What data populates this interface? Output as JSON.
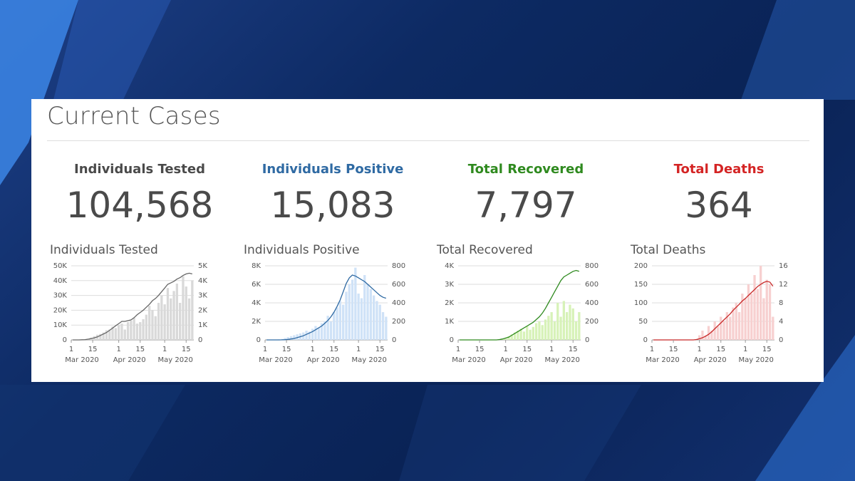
{
  "panel": {
    "title": "Current Cases"
  },
  "stats": [
    {
      "label": "Individuals Tested",
      "value": "104,568",
      "color": "#4a4a4a"
    },
    {
      "label": "Individuals Positive",
      "value": "15,083",
      "color": "#2f6aa3"
    },
    {
      "label": "Total Recovered",
      "value": "7,797",
      "color": "#2f8a1f"
    },
    {
      "label": "Total Deaths",
      "value": "364",
      "color": "#d42424"
    }
  ],
  "chart_data": [
    {
      "type": "bar",
      "title": "Individuals Tested",
      "bar_color": "#d9d9d9",
      "line_color": "#666666",
      "left_ticks": [
        "50K",
        "40K",
        "30K",
        "20K",
        "10K",
        "0"
      ],
      "right_ticks": [
        "5K",
        "4K",
        "3K",
        "2K",
        "1K",
        "0"
      ],
      "x_ticks": [
        "1",
        "15",
        "1",
        "15",
        "1",
        "15"
      ],
      "month_labels": [
        "Mar 2020",
        "Apr 2020",
        "May 2020"
      ],
      "ylim_left": [
        0,
        50000
      ],
      "ylim_right": [
        0,
        5000
      ],
      "x": [
        "Mar 1",
        "Mar 3",
        "Mar 5",
        "Mar 7",
        "Mar 9",
        "Mar 11",
        "Mar 13",
        "Mar 15",
        "Mar 17",
        "Mar 19",
        "Mar 21",
        "Mar 23",
        "Mar 25",
        "Mar 27",
        "Mar 29",
        "Mar 31",
        "Apr 2",
        "Apr 4",
        "Apr 6",
        "Apr 8",
        "Apr 10",
        "Apr 12",
        "Apr 14",
        "Apr 16",
        "Apr 18",
        "Apr 20",
        "Apr 22",
        "Apr 24",
        "Apr 26",
        "Apr 28",
        "Apr 30",
        "May 2",
        "May 4",
        "May 6",
        "May 8",
        "May 10",
        "May 12",
        "May 14",
        "May 16",
        "May 18"
      ],
      "series": [
        {
          "axis": "right",
          "values": [
            0,
            0,
            10,
            20,
            50,
            80,
            150,
            250,
            350,
            400,
            500,
            650,
            700,
            900,
            800,
            1000,
            1100,
            700,
            1200,
            1300,
            1500,
            1100,
            1200,
            1400,
            1700,
            2300,
            2000,
            1600,
            2500,
            3000,
            2400,
            3500,
            2800,
            3300,
            3800,
            2500,
            4300,
            3600,
            2800,
            4000
          ]
        },
        {
          "axis": "left",
          "values": [
            0,
            0,
            0,
            100,
            200,
            500,
            900,
            1400,
            2000,
            3000,
            4000,
            5000,
            6500,
            8000,
            9500,
            11000,
            12500,
            12500,
            13000,
            13500,
            15000,
            17000,
            18500,
            20000,
            22000,
            24000,
            26500,
            28000,
            30000,
            32500,
            35000,
            37500,
            38500,
            39500,
            41000,
            42000,
            43500,
            44500,
            45000,
            44500
          ]
        }
      ]
    },
    {
      "type": "bar",
      "title": "Individuals Positive",
      "bar_color": "#cfe2f7",
      "line_color": "#2f6aa3",
      "left_ticks": [
        "8K",
        "6K",
        "4K",
        "2K",
        "0"
      ],
      "right_ticks": [
        "800",
        "600",
        "400",
        "200",
        "0"
      ],
      "x_ticks": [
        "1",
        "15",
        "1",
        "15",
        "1",
        "15"
      ],
      "month_labels": [
        "Mar 2020",
        "Apr 2020",
        "May 2020"
      ],
      "ylim_left": [
        0,
        8000
      ],
      "ylim_right": [
        0,
        800
      ],
      "x": [
        "Mar 1",
        "Mar 3",
        "Mar 5",
        "Mar 7",
        "Mar 9",
        "Mar 11",
        "Mar 13",
        "Mar 15",
        "Mar 17",
        "Mar 19",
        "Mar 21",
        "Mar 23",
        "Mar 25",
        "Mar 27",
        "Mar 29",
        "Mar 31",
        "Apr 2",
        "Apr 4",
        "Apr 6",
        "Apr 8",
        "Apr 10",
        "Apr 12",
        "Apr 14",
        "Apr 16",
        "Apr 18",
        "Apr 20",
        "Apr 22",
        "Apr 24",
        "Apr 26",
        "Apr 28",
        "Apr 30",
        "May 2",
        "May 4",
        "May 6",
        "May 8",
        "May 10",
        "May 12",
        "May 14",
        "May 16",
        "May 18"
      ],
      "series": [
        {
          "axis": "right",
          "values": [
            0,
            0,
            0,
            0,
            5,
            10,
            20,
            30,
            40,
            50,
            60,
            70,
            80,
            100,
            90,
            120,
            150,
            130,
            180,
            200,
            260,
            200,
            300,
            350,
            420,
            380,
            520,
            600,
            650,
            780,
            500,
            450,
            700,
            600,
            550,
            480,
            420,
            380,
            300,
            250
          ]
        },
        {
          "axis": "left",
          "values": [
            0,
            0,
            0,
            0,
            0,
            10,
            20,
            50,
            100,
            150,
            250,
            350,
            450,
            600,
            750,
            900,
            1100,
            1300,
            1500,
            1800,
            2100,
            2500,
            3000,
            3600,
            4300,
            5200,
            6100,
            6700,
            7000,
            6900,
            6700,
            6500,
            6300,
            6000,
            5700,
            5400,
            5100,
            4800,
            4600,
            4500
          ]
        }
      ]
    },
    {
      "type": "bar",
      "title": "Total Recovered",
      "bar_color": "#d7f2b8",
      "line_color": "#2f8a1f",
      "left_ticks": [
        "4K",
        "3K",
        "2K",
        "1K",
        "0"
      ],
      "right_ticks": [
        "800",
        "600",
        "400",
        "200",
        "0"
      ],
      "x_ticks": [
        "1",
        "15",
        "1",
        "15",
        "1",
        "15"
      ],
      "month_labels": [
        "Mar 2020",
        "Apr 2020",
        "May 2020"
      ],
      "ylim_left": [
        0,
        4000
      ],
      "ylim_right": [
        0,
        800
      ],
      "x": [
        "Mar 1",
        "Mar 3",
        "Mar 5",
        "Mar 7",
        "Mar 9",
        "Mar 11",
        "Mar 13",
        "Mar 15",
        "Mar 17",
        "Mar 19",
        "Mar 21",
        "Mar 23",
        "Mar 25",
        "Mar 27",
        "Mar 29",
        "Mar 31",
        "Apr 2",
        "Apr 4",
        "Apr 6",
        "Apr 8",
        "Apr 10",
        "Apr 12",
        "Apr 14",
        "Apr 16",
        "Apr 18",
        "Apr 20",
        "Apr 22",
        "Apr 24",
        "Apr 26",
        "Apr 28",
        "Apr 30",
        "May 2",
        "May 4",
        "May 6",
        "May 8",
        "May 10",
        "May 12",
        "May 14",
        "May 16",
        "May 18"
      ],
      "series": [
        {
          "axis": "right",
          "values": [
            0,
            0,
            0,
            0,
            0,
            0,
            0,
            0,
            0,
            0,
            0,
            0,
            0,
            0,
            10,
            20,
            40,
            60,
            80,
            100,
            120,
            90,
            150,
            110,
            140,
            180,
            200,
            160,
            220,
            260,
            300,
            200,
            400,
            250,
            420,
            300,
            380,
            340,
            200,
            300
          ]
        },
        {
          "axis": "left",
          "values": [
            0,
            0,
            0,
            0,
            0,
            0,
            0,
            0,
            0,
            0,
            0,
            0,
            0,
            20,
            50,
            100,
            150,
            250,
            350,
            450,
            550,
            650,
            750,
            850,
            950,
            1100,
            1250,
            1450,
            1700,
            2000,
            2300,
            2600,
            2900,
            3200,
            3400,
            3500,
            3600,
            3700,
            3750,
            3700
          ]
        }
      ]
    },
    {
      "type": "bar",
      "title": "Total Deaths",
      "bar_color": "#f7d0d0",
      "line_color": "#c82828",
      "left_ticks": [
        "200",
        "150",
        "100",
        "50",
        "0"
      ],
      "right_ticks": [
        "16",
        "12",
        "8",
        "4",
        "0"
      ],
      "x_ticks": [
        "1",
        "15",
        "1",
        "15",
        "1",
        "15"
      ],
      "month_labels": [
        "Mar 2020",
        "Apr 2020",
        "May 2020"
      ],
      "ylim_left": [
        0,
        200
      ],
      "ylim_right": [
        0,
        16
      ],
      "x": [
        "Mar 1",
        "Mar 3",
        "Mar 5",
        "Mar 7",
        "Mar 9",
        "Mar 11",
        "Mar 13",
        "Mar 15",
        "Mar 17",
        "Mar 19",
        "Mar 21",
        "Mar 23",
        "Mar 25",
        "Mar 27",
        "Mar 29",
        "Mar 31",
        "Apr 2",
        "Apr 4",
        "Apr 6",
        "Apr 8",
        "Apr 10",
        "Apr 12",
        "Apr 14",
        "Apr 16",
        "Apr 18",
        "Apr 20",
        "Apr 22",
        "Apr 24",
        "Apr 26",
        "Apr 28",
        "Apr 30",
        "May 2",
        "May 4",
        "May 6",
        "May 8",
        "May 10",
        "May 12",
        "May 14",
        "May 16",
        "May 18"
      ],
      "series": [
        {
          "axis": "right",
          "values": [
            0,
            0,
            0,
            0,
            0,
            0,
            0,
            0,
            0,
            0,
            0,
            0,
            0,
            0,
            0,
            1,
            2,
            1,
            3,
            2,
            4,
            3,
            5,
            4,
            6,
            5,
            7,
            8,
            6,
            10,
            9,
            12,
            10,
            14,
            11,
            16,
            9,
            13,
            12,
            5
          ]
        },
        {
          "axis": "left",
          "values": [
            0,
            0,
            0,
            0,
            0,
            0,
            0,
            0,
            0,
            0,
            0,
            0,
            0,
            0,
            1,
            3,
            6,
            10,
            15,
            22,
            30,
            38,
            46,
            54,
            62,
            70,
            80,
            88,
            96,
            105,
            112,
            120,
            128,
            136,
            144,
            150,
            155,
            158,
            156,
            145
          ]
        }
      ]
    }
  ]
}
